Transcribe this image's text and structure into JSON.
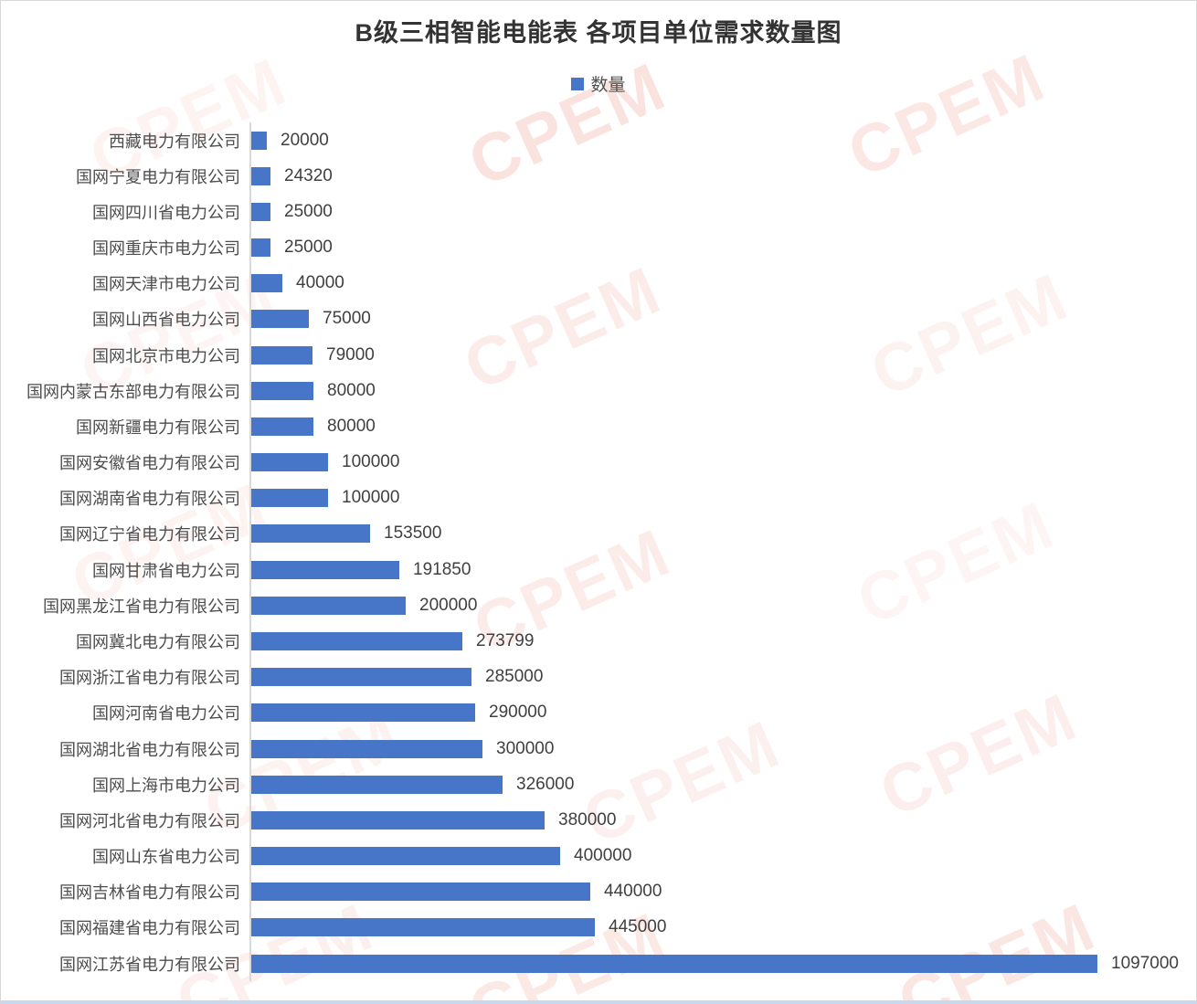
{
  "watermark": {
    "text": "CPEM",
    "color": "#E2543C"
  },
  "colors": {
    "background": "#FFFFFF",
    "border": "#D6D6D6",
    "bottom_edge": "#C6D9F1",
    "title_text": "#333333",
    "category_text": "#4D4D4D",
    "value_text": "#404040",
    "axis_line": "#D9D9D9"
  },
  "chart_data": {
    "type": "bar",
    "orientation": "horizontal",
    "title": "B级三相智能电能表 各项目单位需求数量图",
    "legend": {
      "label": "数量",
      "position": "top",
      "swatch_color": "#4775C8"
    },
    "bar_color": "#4775C8",
    "grid": false,
    "value_labels_shown": true,
    "xlim": [
      0,
      1200000
    ],
    "categories": [
      "西藏电力有限公司",
      "国网宁夏电力有限公司",
      "国网四川省电力公司",
      "国网重庆市电力公司",
      "国网天津市电力公司",
      "国网山西省电力公司",
      "国网北京市电力公司",
      "国网内蒙古东部电力有限公司",
      "国网新疆电力有限公司",
      "国网安徽省电力有限公司",
      "国网湖南省电力有限公司",
      "国网辽宁省电力有限公司",
      "国网甘肃省电力公司",
      "国网黑龙江省电力有限公司",
      "国网冀北电力有限公司",
      "国网浙江省电力有限公司",
      "国网河南省电力公司",
      "国网湖北省电力有限公司",
      "国网上海市电力公司",
      "国网河北省电力有限公司",
      "国网山东省电力公司",
      "国网吉林省电力有限公司",
      "国网福建省电力有限公司",
      "国网江苏省电力有限公司"
    ],
    "values": [
      20000,
      24320,
      25000,
      25000,
      40000,
      75000,
      79000,
      80000,
      80000,
      100000,
      100000,
      153500,
      191850,
      200000,
      273799,
      285000,
      290000,
      300000,
      326000,
      380000,
      400000,
      440000,
      445000,
      1097000
    ]
  }
}
